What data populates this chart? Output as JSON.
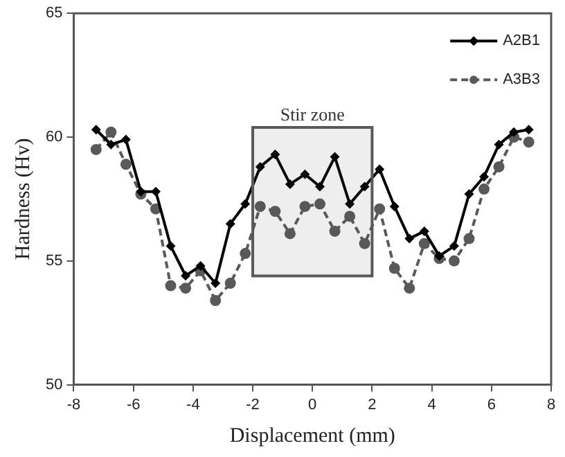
{
  "chart_data": {
    "type": "line",
    "xlabel": "Displacement (mm)",
    "ylabel": "Hardness (Hv)",
    "x": [
      -7.25,
      -6.75,
      -6.25,
      -5.75,
      -5.25,
      -4.75,
      -4.25,
      -3.75,
      -3.25,
      -2.75,
      -2.25,
      -1.75,
      -1.25,
      -0.75,
      -0.25,
      0.25,
      0.75,
      1.25,
      1.75,
      2.25,
      2.75,
      3.25,
      3.75,
      4.25,
      4.75,
      5.25,
      5.75,
      6.25,
      6.75,
      7.25
    ],
    "series": [
      {
        "name": "A2B1",
        "color": "#000000",
        "marker": "diamond",
        "line_style": "solid",
        "values": [
          60.3,
          59.7,
          59.9,
          57.8,
          57.8,
          55.6,
          54.4,
          54.8,
          54.1,
          56.5,
          57.3,
          58.8,
          59.3,
          58.1,
          58.5,
          58.0,
          59.2,
          57.3,
          58.0,
          58.7,
          57.2,
          55.9,
          56.2,
          55.2,
          55.6,
          57.7,
          58.4,
          59.7,
          60.2,
          60.3
        ]
      },
      {
        "name": "A3B3",
        "color": "#595959",
        "marker": "circle",
        "line_style": "dashed",
        "values": [
          59.5,
          60.2,
          58.9,
          57.7,
          57.1,
          54.0,
          53.9,
          54.6,
          53.4,
          54.1,
          55.3,
          57.2,
          57.0,
          56.1,
          57.2,
          57.3,
          56.2,
          56.8,
          55.7,
          57.1,
          54.7,
          53.9,
          55.7,
          55.1,
          55.0,
          55.9,
          57.9,
          58.8,
          60.0,
          59.8
        ]
      }
    ],
    "xlim": [
      -8,
      8
    ],
    "xticks": [
      -8,
      -6,
      -4,
      -2,
      0,
      2,
      4,
      6,
      8
    ],
    "ylim": [
      50,
      65
    ],
    "yticks": [
      50,
      55,
      60,
      65
    ],
    "bands": [
      {
        "axis": "x",
        "from": -2,
        "to": 2,
        "label": "Stir zone",
        "color": "#595959"
      }
    ],
    "grid": false,
    "legend": "top right"
  }
}
